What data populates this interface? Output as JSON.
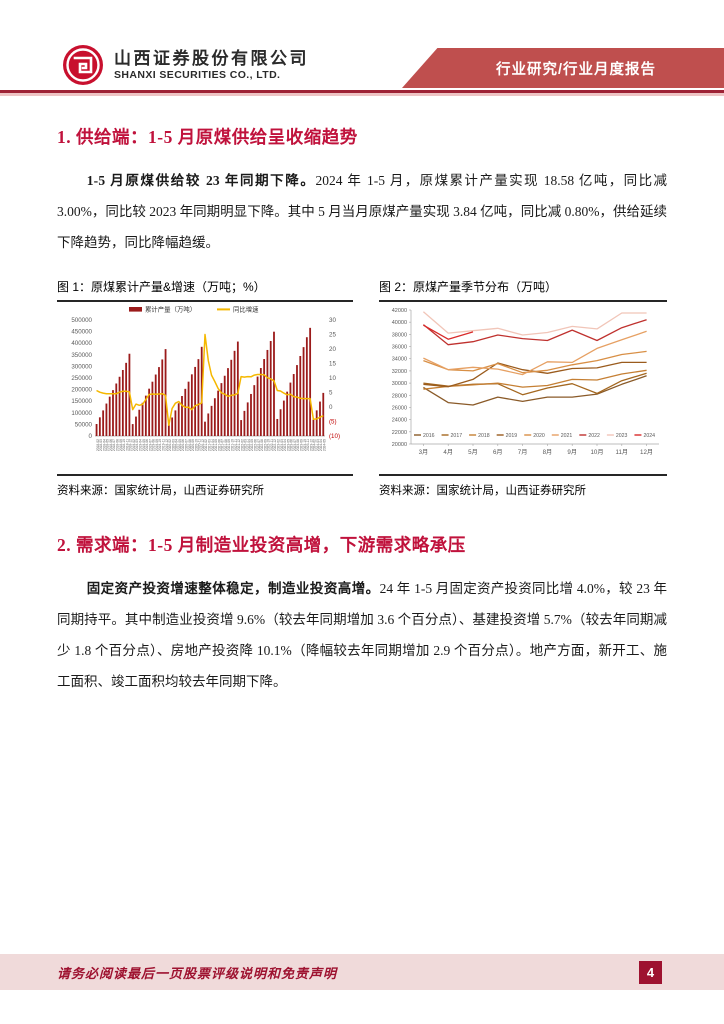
{
  "header": {
    "company_cn": "山西证券股份有限公司",
    "company_en": "SHANXI SECURITIES CO., LTD.",
    "report_type": "行业研究/行业月度报告"
  },
  "section1": {
    "heading": "1. 供给端：1-5 月原煤供给呈收缩趋势",
    "para_bold": "1-5 月原煤供给较 23 年同期下降。",
    "para_rest": "2024 年 1-5 月，原煤累计产量实现 18.58 亿吨，同比减 3.00%，同比较 2023 年同期明显下降。其中 5 月当月原煤产量实现 3.84 亿吨，同比减 0.80%，供给延续下降趋势，同比降幅趋缓。"
  },
  "section2": {
    "heading": "2. 需求端：1-5 月制造业投资高增，下游需求略承压",
    "para_bold": "固定资产投资增速整体稳定，制造业投资高增。",
    "para_rest": "24 年 1-5 月固定资产投资同比增 4.0%，较 23 年同期持平。其中制造业投资增 9.6%（较去年同期增加 3.6 个百分点）、基建投资增 5.7%（较去年同期减少 1.8 个百分点）、房地产投资降 10.1%（降幅较去年同期增加 2.9 个百分点）。地产方面，新开工、施工面积、竣工面积均较去年同期下降。"
  },
  "figures": [
    {
      "caption": "图 1：原煤累计产量&增速（万吨；%）",
      "source": "资料来源：国家统计局，山西证券研究所"
    },
    {
      "caption": "图 2：原煤产量季节分布（万吨）",
      "source": "资料来源：国家统计局，山西证券研究所"
    }
  ],
  "footer": {
    "disclaimer": "请务必阅读最后一页股票评级说明和免责声明",
    "page": "4"
  },
  "colors": {
    "accent_crimson": "#c0123c",
    "banner_red": "#bf4f4e",
    "footer_pink": "#f0dada",
    "badge_red": "#9e1230",
    "bar_red": "#9b1b1b",
    "line_yellow": "#f5b800"
  },
  "chart_data": [
    {
      "type": "bar",
      "title": "原煤累计产量&增速（万吨；%）",
      "legend_position": "top",
      "grid": false,
      "left_axis": {
        "min": 0,
        "max": 500000,
        "step": 50000
      },
      "right_axis": {
        "min": -10,
        "max": 30,
        "step": 5
      },
      "categories": [
        "2018-02",
        "2018-03",
        "2018-04",
        "2018-05",
        "2018-06",
        "2018-07",
        "2018-08",
        "2018-09",
        "2018-10",
        "2018-11",
        "2018-12",
        "2019-02",
        "2019-03",
        "2019-04",
        "2019-05",
        "2019-06",
        "2019-07",
        "2019-08",
        "2019-09",
        "2019-10",
        "2019-11",
        "2019-12",
        "2020-02",
        "2020-03",
        "2020-04",
        "2020-05",
        "2020-06",
        "2020-07",
        "2020-08",
        "2020-09",
        "2020-10",
        "2020-11",
        "2020-12",
        "2021-02",
        "2021-03",
        "2021-04",
        "2021-05",
        "2021-06",
        "2021-07",
        "2021-08",
        "2021-09",
        "2021-10",
        "2021-11",
        "2021-12",
        "2022-02",
        "2022-03",
        "2022-04",
        "2022-05",
        "2022-06",
        "2022-07",
        "2022-08",
        "2022-09",
        "2022-10",
        "2022-11",
        "2022-12",
        "2023-02",
        "2023-03",
        "2023-04",
        "2023-05",
        "2023-06",
        "2023-07",
        "2023-08",
        "2023-09",
        "2023-10",
        "2023-11",
        "2023-12",
        "2024-02",
        "2024-03",
        "2024-04",
        "2024-05"
      ],
      "series": [
        {
          "name": "累计产量（万吨）",
          "type": "bar",
          "axis": "left",
          "color": "#9b1b1b",
          "values": [
            51700,
            80500,
            110300,
            139900,
            169700,
            197800,
            226300,
            255300,
            284500,
            315400,
            354600,
            51400,
            83700,
            113100,
            143200,
            174000,
            204000,
            234100,
            265000,
            297000,
            330000,
            374600,
            48900,
            79900,
            110300,
            141100,
            172400,
            203300,
            234200,
            265800,
            297700,
            331300,
            384400,
            61800,
            97100,
            129900,
            162800,
            195600,
            228000,
            259700,
            292600,
            328400,
            367100,
            407100,
            68700,
            108300,
            144800,
            181200,
            219200,
            256200,
            293000,
            331700,
            370900,
            409400,
            449600,
            73400,
            115300,
            152700,
            191100,
            230200,
            267100,
            305700,
            344800,
            383100,
            425800,
            466200,
            70500,
            110500,
            148400,
            185800
          ]
        },
        {
          "name": "同比增速",
          "type": "line",
          "axis": "right",
          "color": "#f5b800",
          "values": [
            5.7,
            5.1,
            4.8,
            4.6,
            4.6,
            4.6,
            4.6,
            5.1,
            5.4,
            5.4,
            5.2,
            -0.9,
            1.0,
            0.6,
            0.9,
            2.6,
            4.3,
            4.5,
            4.4,
            4.5,
            4.6,
            4.0,
            -6.3,
            -0.5,
            1.3,
            1.9,
            0.6,
            -0.1,
            -0.1,
            -0.9,
            0.4,
            0.9,
            1.4,
            25.0,
            16.0,
            11.0,
            8.8,
            6.4,
            4.9,
            4.4,
            3.7,
            4.0,
            4.2,
            4.7,
            10.5,
            10.3,
            10.5,
            10.4,
            11.0,
            11.2,
            11.2,
            11.1,
            10.1,
            9.7,
            9.0,
            5.7,
            5.5,
            4.8,
            4.2,
            4.4,
            3.6,
            3.4,
            3.0,
            2.9,
            2.9,
            2.9,
            -4.2,
            -4.1,
            -3.5,
            -3.0
          ]
        }
      ]
    },
    {
      "type": "line",
      "title": "原煤产量季节分布（万吨）",
      "legend_position": "bottom-inside",
      "grid": false,
      "ylim": [
        20000,
        42000
      ],
      "ystep": 2000,
      "x": [
        "3月",
        "4月",
        "5月",
        "6月",
        "7月",
        "8月",
        "9月",
        "10月",
        "11月",
        "12月"
      ],
      "series": [
        {
          "name": "2016",
          "color": "#8a5a28",
          "values": [
            29300,
            26800,
            26400,
            27700,
            27000,
            27700,
            27700,
            28200,
            29800,
            31200
          ]
        },
        {
          "name": "2017",
          "color": "#a4671f",
          "values": [
            30000,
            29500,
            29800,
            29900,
            28100,
            29200,
            29900,
            28300,
            30400,
            31600
          ]
        },
        {
          "name": "2018",
          "color": "#c57f33",
          "values": [
            29000,
            29450,
            29700,
            30000,
            29350,
            29600,
            30600,
            30500,
            31500,
            32100
          ]
        },
        {
          "name": "2019",
          "color": "#9a5b1d",
          "values": [
            29800,
            29400,
            30600,
            33300,
            32200,
            31600,
            32400,
            32500,
            33400,
            33400
          ]
        },
        {
          "name": "2020",
          "color": "#d88f45",
          "values": [
            33700,
            32200,
            32000,
            33200,
            31700,
            32100,
            33000,
            33700,
            34700,
            35200
          ]
        },
        {
          "name": "2021",
          "color": "#e6a063",
          "values": [
            34100,
            32200,
            32600,
            32300,
            31400,
            33500,
            33400,
            35700,
            37100,
            38500
          ]
        },
        {
          "name": "2022",
          "color": "#bf312e",
          "values": [
            39600,
            36300,
            36800,
            37900,
            37300,
            37000,
            38700,
            37000,
            39100,
            40400
          ]
        },
        {
          "name": "2023",
          "color": "#f1c5b8",
          "values": [
            41700,
            38200,
            38600,
            39000,
            37900,
            38300,
            39300,
            38900,
            41500,
            41500
          ]
        },
        {
          "name": "2024",
          "color": "#d92a2a",
          "values": [
            39500,
            37200,
            38400
          ]
        }
      ]
    }
  ]
}
